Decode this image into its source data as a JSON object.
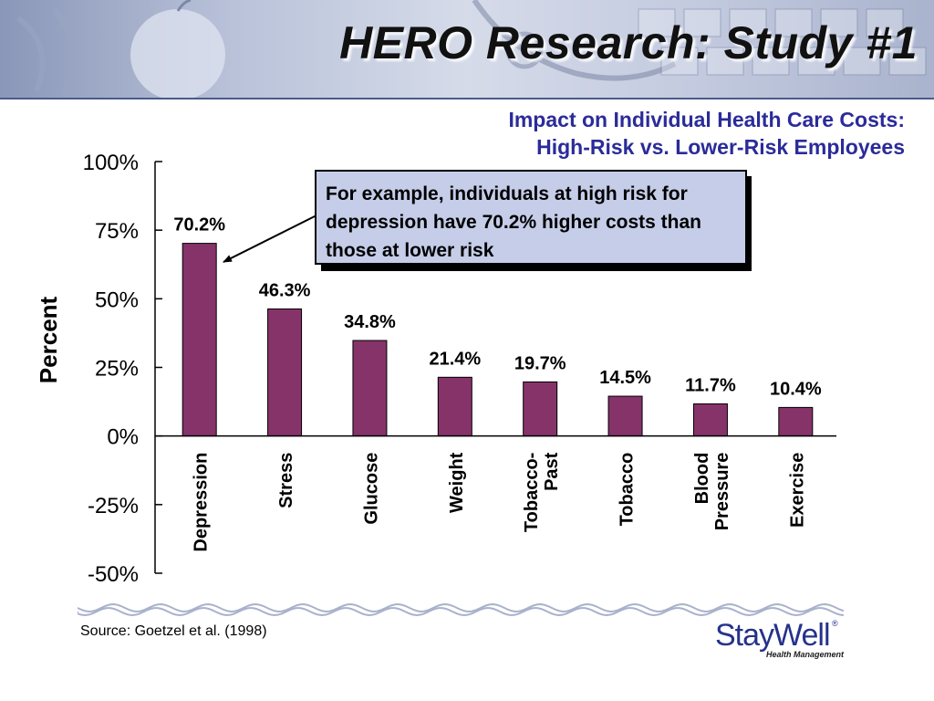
{
  "slide_title": "HERO Research: Study #1",
  "callout_text": "For example, individuals at high risk for depression have 70.2% higher costs than those at lower risk",
  "source": "Source: Goetzel et al. (1998)",
  "logo": {
    "word": "StayWell",
    "reg": "®",
    "sub": "Health Management"
  },
  "colors": {
    "bar": "#86336a",
    "title_blue": "#2b2b9a",
    "callout_bg": "#c5cde8",
    "header": "#b9c2d9"
  },
  "chart_data": {
    "type": "bar",
    "title": "Impact on Individual Health Care Costs:",
    "subtitle": "High-Risk vs. Lower-Risk Employees",
    "ylabel": "Percent",
    "xlabel": "",
    "ylim": [
      -50,
      100
    ],
    "yticks": [
      100,
      75,
      50,
      25,
      0,
      -25,
      -50
    ],
    "ytick_labels": [
      "100%",
      "75%",
      "50%",
      "25%",
      "0%",
      "-25%",
      "-50%"
    ],
    "categories": [
      "Depression",
      "Stress",
      "Glucose",
      "Weight",
      "Tobacco-Past",
      "Tobacco",
      "Blood Pressure",
      "Exercise"
    ],
    "category_lines": [
      [
        "Depression"
      ],
      [
        "Stress"
      ],
      [
        "Glucose"
      ],
      [
        "Weight"
      ],
      [
        "Tobacco-",
        "Past"
      ],
      [
        "Tobacco"
      ],
      [
        "Blood",
        "Pressure"
      ],
      [
        "Exercise"
      ]
    ],
    "values": [
      70.2,
      46.3,
      34.8,
      21.4,
      19.7,
      14.5,
      11.7,
      10.4
    ],
    "value_labels": [
      "70.2%",
      "46.3%",
      "34.8%",
      "21.4%",
      "19.7%",
      "14.5%",
      "11.7%",
      "10.4%"
    ],
    "grid": false,
    "legend": "none"
  }
}
